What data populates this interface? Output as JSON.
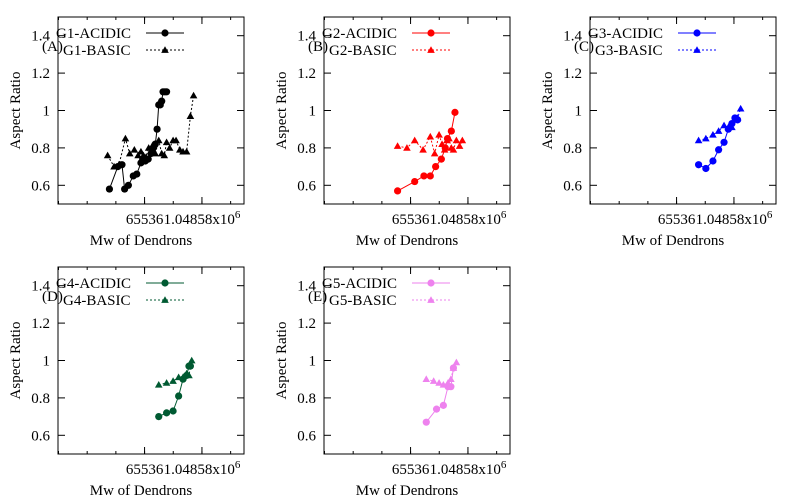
{
  "chart_data": [
    {
      "type": "line",
      "panel_label": "(A)",
      "xlabel": "Mw of Dendrons",
      "ylabel": "Aspect Ratio",
      "x_scale": "log2",
      "xlim": [
        1000,
        8000000
      ],
      "ylim": [
        0.5,
        1.5
      ],
      "x_ticks": [
        {
          "value": 65536,
          "label": "65536"
        },
        {
          "value": 1048576,
          "label": "1.04858x10",
          "sup": "6"
        }
      ],
      "y_ticks": [
        {
          "value": 0.6,
          "label": "0.6"
        },
        {
          "value": 0.8,
          "label": "0.8"
        },
        {
          "value": 1.0,
          "label": "1"
        },
        {
          "value": 1.2,
          "label": "1.2"
        },
        {
          "value": 1.4,
          "label": "1.4"
        }
      ],
      "grid": false,
      "legend": "top-left",
      "series": [
        {
          "name": "G1-ACIDIC",
          "color": "#000000",
          "marker": "circle",
          "dash": "solid",
          "x": [
            12000,
            18000,
            22000,
            25000,
            30000,
            38000,
            45000,
            55000,
            60000,
            68000,
            78000,
            90000,
            100000,
            110000,
            120000,
            130000,
            140000,
            150000,
            160000,
            175000,
            190000
          ],
          "y": [
            0.58,
            0.7,
            0.71,
            0.58,
            0.6,
            0.65,
            0.66,
            0.72,
            0.74,
            0.73,
            0.74,
            0.77,
            0.8,
            0.82,
            0.9,
            1.03,
            1.03,
            1.05,
            1.1,
            1.1,
            1.1
          ]
        },
        {
          "name": "G1-BASIC",
          "color": "#000000",
          "marker": "triangle",
          "dash": "dashed",
          "x": [
            11000,
            15000,
            19000,
            26000,
            32000,
            40000,
            48000,
            55000,
            62000,
            70000,
            80000,
            95000,
            110000,
            130000,
            150000,
            170000,
            190000,
            220000,
            260000,
            300000,
            360000,
            420000,
            500000,
            600000,
            700000
          ],
          "y": [
            0.76,
            0.7,
            0.71,
            0.85,
            0.77,
            0.79,
            0.76,
            0.78,
            0.76,
            0.75,
            0.8,
            0.81,
            0.77,
            0.84,
            0.77,
            0.76,
            0.83,
            0.8,
            0.84,
            0.84,
            0.79,
            0.78,
            0.78,
            0.97,
            1.08
          ]
        }
      ]
    },
    {
      "type": "line",
      "panel_label": "(B)",
      "xlabel": "Mw of Dendrons",
      "ylabel": "Aspect Ratio",
      "x_scale": "log2",
      "xlim": [
        1000,
        8000000
      ],
      "ylim": [
        0.5,
        1.5
      ],
      "x_ticks": [
        {
          "value": 65536,
          "label": "65536"
        },
        {
          "value": 1048576,
          "label": "1.04858x10",
          "sup": "6"
        }
      ],
      "y_ticks": [
        {
          "value": 0.6,
          "label": "0.6"
        },
        {
          "value": 0.8,
          "label": "0.8"
        },
        {
          "value": 1.0,
          "label": "1"
        },
        {
          "value": 1.2,
          "label": "1.2"
        },
        {
          "value": 1.4,
          "label": "1.4"
        }
      ],
      "grid": false,
      "legend": "top-left",
      "series": [
        {
          "name": "G2-ACIDIC",
          "color": "#ff0000",
          "marker": "circle",
          "dash": "solid",
          "x": [
            35000,
            80000,
            125000,
            170000,
            220000,
            290000,
            350000,
            390000,
            470000,
            560000
          ],
          "y": [
            0.57,
            0.62,
            0.65,
            0.65,
            0.7,
            0.74,
            0.8,
            0.85,
            0.89,
            0.99
          ]
        },
        {
          "name": "G2-BASIC",
          "color": "#ff0000",
          "marker": "triangle",
          "dash": "dashed",
          "x": [
            35000,
            55000,
            80000,
            120000,
            170000,
            210000,
            260000,
            300000,
            340000,
            380000,
            420000,
            470000,
            520000,
            600000,
            700000,
            800000
          ],
          "y": [
            0.81,
            0.8,
            0.84,
            0.79,
            0.86,
            0.77,
            0.87,
            0.82,
            0.79,
            0.84,
            0.85,
            0.8,
            0.79,
            0.84,
            0.81,
            0.84
          ]
        }
      ]
    },
    {
      "type": "line",
      "panel_label": "(C)",
      "xlabel": "Mw of Dendrons",
      "ylabel": "Aspect Ratio",
      "x_scale": "log2",
      "xlim": [
        1000,
        8000000
      ],
      "ylim": [
        0.5,
        1.5
      ],
      "x_ticks": [
        {
          "value": 65536,
          "label": "65536"
        },
        {
          "value": 1048576,
          "label": "1.04858x10",
          "sup": "6"
        }
      ],
      "y_ticks": [
        {
          "value": 0.6,
          "label": "0.6"
        },
        {
          "value": 0.8,
          "label": "0.8"
        },
        {
          "value": 1.0,
          "label": "1"
        },
        {
          "value": 1.2,
          "label": "1.2"
        },
        {
          "value": 1.4,
          "label": "1.4"
        }
      ],
      "grid": false,
      "legend": "top-left",
      "series": [
        {
          "name": "G3-ACIDIC",
          "color": "#0000ff",
          "marker": "circle",
          "dash": "solid",
          "x": [
            190000,
            270000,
            380000,
            500000,
            650000,
            800000,
            950000,
            1100000,
            1250000
          ],
          "y": [
            0.71,
            0.69,
            0.73,
            0.79,
            0.83,
            0.9,
            0.93,
            0.96,
            0.95
          ]
        },
        {
          "name": "G3-BASIC",
          "color": "#0000ff",
          "marker": "triangle",
          "dash": "dashed",
          "x": [
            190000,
            270000,
            380000,
            500000,
            650000,
            800000,
            950000,
            1100000,
            1250000,
            1450000
          ],
          "y": [
            0.84,
            0.85,
            0.87,
            0.89,
            0.92,
            0.91,
            0.91,
            0.95,
            0.96,
            1.01
          ]
        }
      ]
    },
    {
      "type": "line",
      "panel_label": "(D)",
      "xlabel": "Mw of Dendrons",
      "ylabel": "Aspect Ratio",
      "x_scale": "log2",
      "xlim": [
        1000,
        8000000
      ],
      "ylim": [
        0.5,
        1.5
      ],
      "x_ticks": [
        {
          "value": 65536,
          "label": "65536"
        },
        {
          "value": 1048576,
          "label": "1.04858x10",
          "sup": "6"
        }
      ],
      "y_ticks": [
        {
          "value": 0.6,
          "label": "0.6"
        },
        {
          "value": 0.8,
          "label": "0.8"
        },
        {
          "value": 1.0,
          "label": "1"
        },
        {
          "value": 1.2,
          "label": "1.2"
        },
        {
          "value": 1.4,
          "label": "1.4"
        }
      ],
      "grid": false,
      "legend": "top-left",
      "series": [
        {
          "name": "G4-ACIDIC",
          "color": "#005a32",
          "marker": "circle",
          "dash": "solid",
          "x": [
            130000,
            190000,
            260000,
            340000,
            420000,
            500000,
            560000,
            600000
          ],
          "y": [
            0.7,
            0.72,
            0.73,
            0.81,
            0.9,
            0.92,
            0.97,
            0.97
          ]
        },
        {
          "name": "G4-BASIC",
          "color": "#005a32",
          "marker": "triangle",
          "dash": "dashed",
          "x": [
            130000,
            190000,
            260000,
            340000,
            420000,
            500000,
            560000,
            640000
          ],
          "y": [
            0.87,
            0.88,
            0.89,
            0.91,
            0.91,
            0.93,
            0.92,
            1.0
          ]
        }
      ]
    },
    {
      "type": "line",
      "panel_label": "(E)",
      "xlabel": "Mw of Dendrons",
      "ylabel": "Aspect Ratio",
      "x_scale": "log2",
      "xlim": [
        1000,
        8000000
      ],
      "ylim": [
        0.5,
        1.5
      ],
      "x_ticks": [
        {
          "value": 65536,
          "label": "65536"
        },
        {
          "value": 1048576,
          "label": "1.04858x10",
          "sup": "6"
        }
      ],
      "y_ticks": [
        {
          "value": 0.6,
          "label": "0.6"
        },
        {
          "value": 0.8,
          "label": "0.8"
        },
        {
          "value": 1.0,
          "label": "1"
        },
        {
          "value": 1.2,
          "label": "1.2"
        },
        {
          "value": 1.4,
          "label": "1.4"
        }
      ],
      "grid": false,
      "legend": "top-left",
      "series": [
        {
          "name": "G5-ACIDIC",
          "color": "#ee82ee",
          "marker": "circle",
          "dash": "solid",
          "x": [
            140000,
            230000,
            320000,
            400000,
            460000,
            520000
          ],
          "y": [
            0.67,
            0.74,
            0.76,
            0.86,
            0.86,
            0.96
          ]
        },
        {
          "name": "G5-BASIC",
          "color": "#ee82ee",
          "marker": "triangle",
          "dash": "dashed",
          "x": [
            140000,
            200000,
            260000,
            320000,
            400000,
            460000,
            520000,
            600000
          ],
          "y": [
            0.9,
            0.89,
            0.88,
            0.87,
            0.88,
            0.9,
            0.96,
            0.99
          ]
        }
      ]
    }
  ]
}
